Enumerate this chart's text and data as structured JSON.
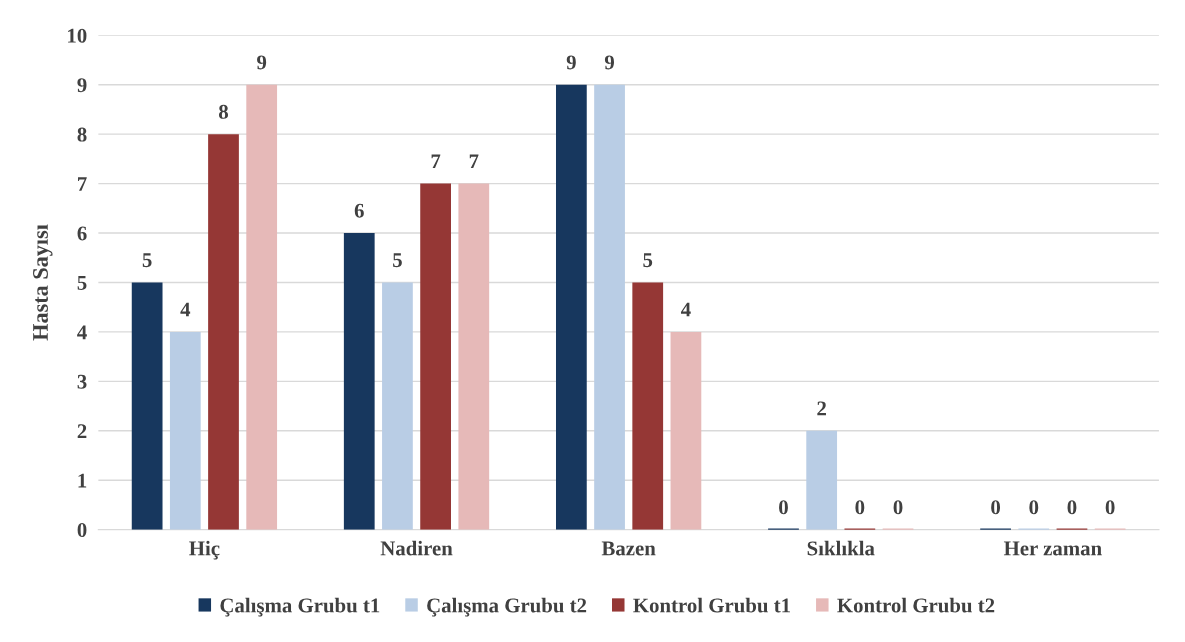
{
  "chart_data": {
    "type": "bar",
    "ylabel": "Hasta Sayısı",
    "categories": [
      "Hiç",
      "Nadiren",
      "Bazen",
      "Sıklıkla",
      "Her zaman"
    ],
    "series": [
      {
        "name": "Çalışma Grubu t1",
        "color": "#17375e",
        "values": [
          5,
          6,
          9,
          0,
          0
        ]
      },
      {
        "name": "Çalışma Grubu t2",
        "color": "#b9cde5",
        "values": [
          4,
          5,
          9,
          2,
          0
        ]
      },
      {
        "name": "Kontrol Grubu t1",
        "color": "#953735",
        "values": [
          8,
          7,
          5,
          0,
          0
        ]
      },
      {
        "name": "Kontrol Grubu t2",
        "color": "#e6b9b8",
        "values": [
          9,
          7,
          4,
          0,
          0
        ]
      }
    ],
    "ylim": [
      0,
      10
    ],
    "yticks": [
      0,
      1,
      2,
      3,
      4,
      5,
      6,
      7,
      8,
      9,
      10
    ],
    "grid": "y",
    "legend": "bottom",
    "data_labels": true
  }
}
